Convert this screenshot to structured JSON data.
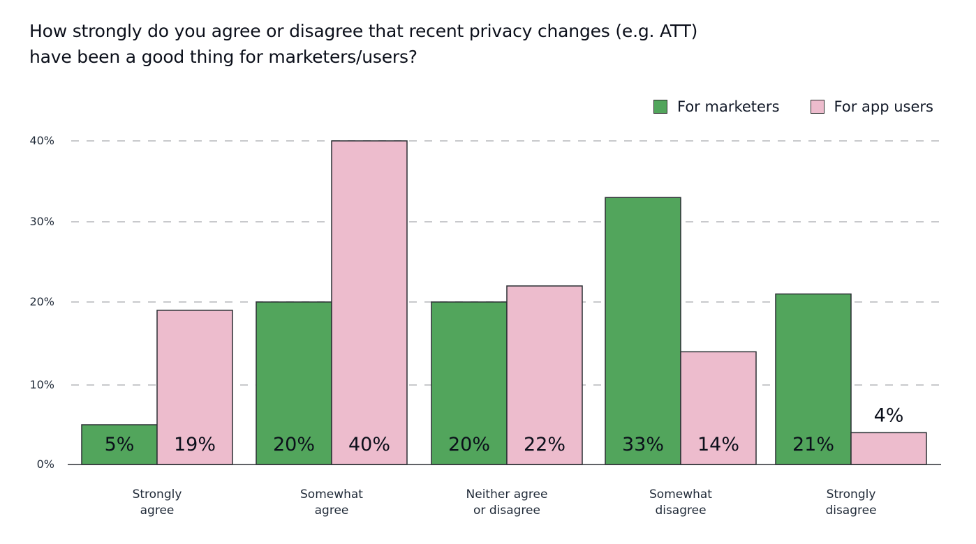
{
  "title_lines": [
    "How strongly do you agree or disagree that recent privacy changes (e.g. ATT)",
    "have been a good thing for marketers/users?"
  ],
  "colors": {
    "marketers": "#52a55c",
    "app_users": "#edbccd",
    "outline": "#2b2f33",
    "grid": "#c8c9cc",
    "axis": "#2b2f33"
  },
  "chart_data": {
    "type": "bar",
    "title": "How strongly do you agree or disagree that recent privacy changes (e.g. ATT) have been a good thing for marketers/users?",
    "xlabel": "",
    "ylabel": "",
    "ylim": [
      0,
      40
    ],
    "yticks": [
      0,
      10,
      20,
      30,
      40
    ],
    "ytick_labels": [
      "0%",
      "10%",
      "20%",
      "30%",
      "40%"
    ],
    "grid": true,
    "legend_position": "top-right",
    "categories": [
      [
        "Strongly",
        "agree"
      ],
      [
        "Somewhat",
        "agree"
      ],
      [
        "Neither agree",
        "or disagree"
      ],
      [
        "Somewhat",
        "disagree"
      ],
      [
        "Strongly",
        "disagree"
      ]
    ],
    "series": [
      {
        "name": "For marketers",
        "color_key": "marketers",
        "values": [
          5,
          20,
          20,
          33,
          21
        ],
        "labels": [
          "5%",
          "20%",
          "20%",
          "33%",
          "21%"
        ]
      },
      {
        "name": "For app users",
        "color_key": "app_users",
        "values": [
          19,
          40,
          22,
          14,
          4
        ],
        "labels": [
          "19%",
          "40%",
          "22%",
          "14%",
          "4%"
        ]
      }
    ]
  }
}
